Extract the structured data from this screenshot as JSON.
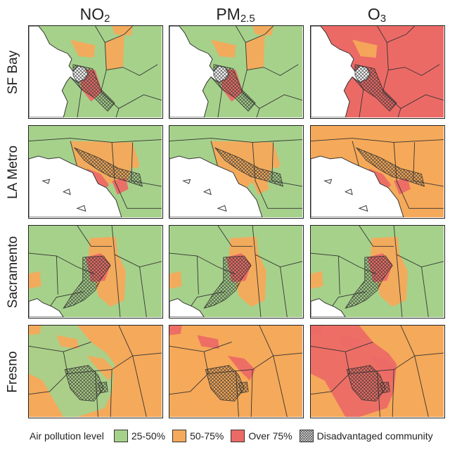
{
  "columns": [
    {
      "main": "NO",
      "sub": "2"
    },
    {
      "main": "PM",
      "sub": "2.5"
    },
    {
      "main": "O",
      "sub": "3"
    }
  ],
  "rows": [
    {
      "label": "SF Bay",
      "pattern": "sf",
      "levels": [
        [
          0,
          1,
          1,
          2
        ],
        [
          0,
          1,
          1,
          2
        ],
        [
          2,
          2,
          1,
          2
        ]
      ]
    },
    {
      "label": "LA Metro",
      "pattern": "la",
      "levels": [
        [
          0,
          1,
          0,
          2
        ],
        [
          0,
          1,
          0,
          1
        ],
        [
          1,
          1,
          1,
          2
        ]
      ]
    },
    {
      "label": "Sacramento",
      "pattern": "sac",
      "levels": [
        [
          0,
          1,
          0,
          2
        ],
        [
          0,
          1,
          0,
          2
        ],
        [
          0,
          1,
          0,
          2
        ]
      ]
    },
    {
      "label": "Fresno",
      "pattern": "fre",
      "levels": [
        [
          1,
          0,
          0,
          1
        ],
        [
          1,
          1,
          0,
          2
        ],
        [
          1,
          2,
          0,
          2
        ]
      ]
    }
  ],
  "legend": {
    "title": "Air pollution level",
    "items": [
      {
        "label": "25-50%",
        "color": "#a6d18b"
      },
      {
        "label": "50-75%",
        "color": "#f5a95a"
      },
      {
        "label": "Over 75%",
        "color": "#ec6a66"
      },
      {
        "label": "Disadvantaged community",
        "color": "hatch"
      }
    ]
  }
}
